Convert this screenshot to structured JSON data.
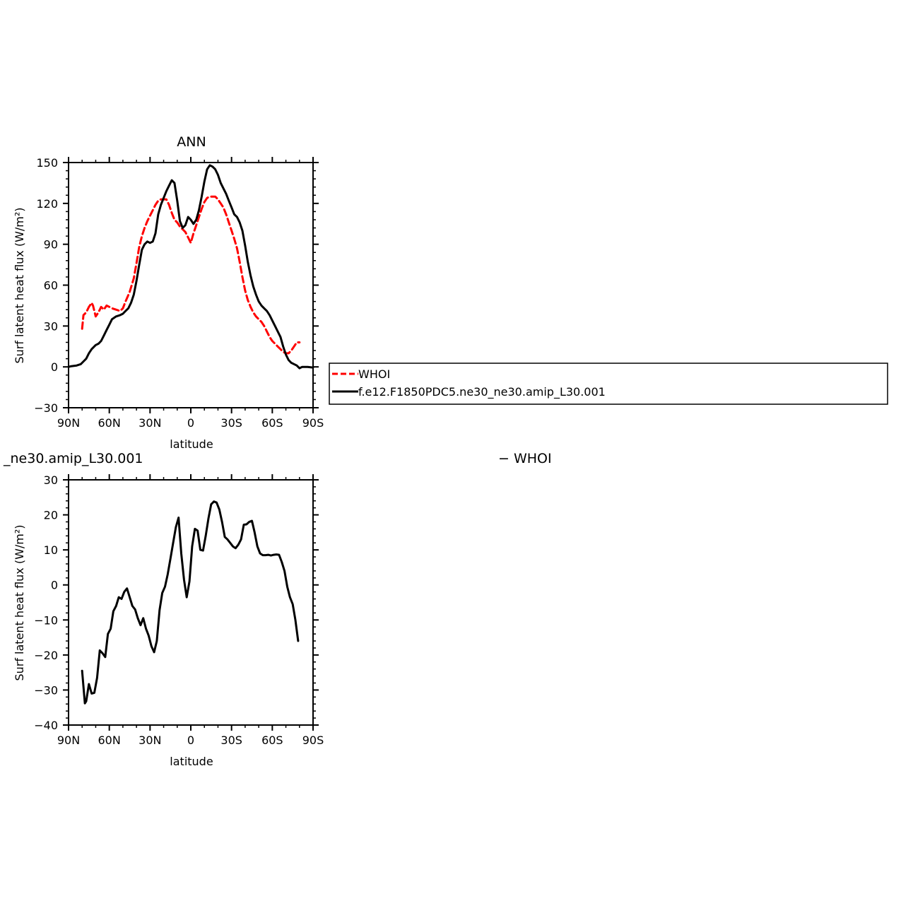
{
  "chart_data": [
    {
      "type": "line",
      "title": "ANN",
      "xlabel": "latitude",
      "ylabel": "Surf latent heat flux (W/m²)",
      "xlim": [
        90,
        -90
      ],
      "ylim": [
        -30,
        150
      ],
      "xticks": [
        90,
        60,
        30,
        0,
        -30,
        -60,
        -90
      ],
      "xtick_labels": [
        "90N",
        "60N",
        "30N",
        "0",
        "30S",
        "60S",
        "90S"
      ],
      "yticks": [
        -30,
        0,
        30,
        60,
        90,
        120,
        150
      ],
      "ytick_labels": [
        "−30",
        "0",
        "30",
        "60",
        "90",
        "120",
        "150"
      ],
      "legend": {
        "position": "right",
        "entries": [
          "WHOI",
          "f.e12.F1850PDC5.ne30_ne30.amip_L30.001"
        ]
      },
      "series": [
        {
          "name": "WHOI",
          "color": "#ff0000",
          "style": "dashed",
          "x": [
            80,
            79,
            77,
            75,
            73,
            72,
            70,
            68,
            66,
            64,
            62,
            60,
            58,
            55,
            52,
            50,
            48,
            45,
            42,
            40,
            38,
            36,
            34,
            32,
            30,
            28,
            26,
            24,
            22,
            20,
            18,
            16,
            14,
            12,
            10,
            8,
            6,
            4,
            2,
            0,
            -2,
            -4,
            -6,
            -8,
            -10,
            -12,
            -14,
            -16,
            -18,
            -20,
            -22,
            -24,
            -26,
            -28,
            -30,
            -32,
            -34,
            -36,
            -38,
            -40,
            -42,
            -44,
            -46,
            -48,
            -50,
            -52,
            -54,
            -56,
            -58,
            -60,
            -62,
            -64,
            -66,
            -68,
            -70,
            -72,
            -74,
            -76,
            -78,
            -80
          ],
          "y": [
            28,
            38,
            40,
            44,
            47,
            45,
            37,
            40,
            44,
            42,
            45,
            44,
            43,
            42,
            41,
            43,
            48,
            55,
            65,
            76,
            88,
            96,
            102,
            107,
            111,
            115,
            119,
            122,
            123,
            123,
            123,
            119,
            113,
            108,
            106,
            103,
            101,
            99,
            95,
            91,
            98,
            104,
            110,
            116,
            121,
            124,
            125,
            125,
            125,
            123,
            120,
            117,
            112,
            106,
            100,
            94,
            87,
            77,
            66,
            56,
            49,
            44,
            40,
            37,
            35,
            33,
            30,
            26,
            22,
            19,
            17,
            15,
            13,
            11,
            10,
            10,
            12,
            15,
            18,
            18
          ]
        },
        {
          "name": "f.e12.F1850PDC5.ne30_ne30.amip_L30.001",
          "color": "#000000",
          "style": "solid",
          "x": [
            90,
            88,
            84,
            81,
            79,
            77,
            75,
            73,
            70,
            68,
            66,
            64,
            62,
            60,
            58,
            55,
            52,
            50,
            48,
            46,
            44,
            42,
            40,
            38,
            36,
            34,
            32,
            30,
            28,
            26,
            24,
            22,
            20,
            18,
            16,
            14,
            12,
            10,
            8,
            6,
            4,
            2,
            0,
            -2,
            -4,
            -6,
            -8,
            -10,
            -12,
            -14,
            -16,
            -18,
            -20,
            -22,
            -24,
            -26,
            -28,
            -30,
            -32,
            -34,
            -36,
            -38,
            -40,
            -42,
            -44,
            -46,
            -48,
            -50,
            -52,
            -54,
            -56,
            -58,
            -60,
            -62,
            -64,
            -66,
            -68,
            -70,
            -72,
            -74,
            -76,
            -78,
            -80,
            -82,
            -86,
            -90
          ],
          "y": [
            0,
            0.5,
            1,
            2,
            4,
            6,
            10,
            13,
            16,
            17,
            19,
            23,
            27,
            31,
            35,
            37,
            38,
            39,
            41,
            43,
            47,
            53,
            63,
            75,
            86,
            90,
            92,
            91,
            92,
            98,
            112,
            119,
            124,
            129,
            133,
            137,
            135,
            122,
            107,
            102,
            104,
            110,
            108,
            105,
            108,
            115,
            125,
            136,
            145,
            148,
            147,
            145,
            141,
            135,
            131,
            127,
            122,
            117,
            112,
            110,
            106,
            100,
            89,
            77,
            67,
            59,
            53,
            48,
            45,
            43,
            41,
            38,
            34,
            30,
            26,
            22,
            15,
            9,
            5,
            3,
            2,
            1,
            -1,
            0,
            0,
            -0.5
          ]
        }
      ]
    },
    {
      "type": "line",
      "title": "_ne30.amip_L30.001",
      "title_right": "− WHOI",
      "xlabel": "latitude",
      "ylabel": "Surf latent heat flux (W/m²)",
      "xlim": [
        90,
        -90
      ],
      "ylim": [
        -40,
        30
      ],
      "xticks": [
        90,
        60,
        30,
        0,
        -30,
        -60,
        -90
      ],
      "xtick_labels": [
        "90N",
        "60N",
        "30N",
        "0",
        "30S",
        "60S",
        "90S"
      ],
      "yticks": [
        -40,
        -30,
        -20,
        -10,
        0,
        10,
        20,
        30
      ],
      "ytick_labels": [
        "−40",
        "−30",
        "−20",
        "−10",
        "0",
        "10",
        "20",
        "30"
      ],
      "series": [
        {
          "color": "#000000",
          "style": "solid",
          "x": [
            80,
            78,
            77,
            75,
            73,
            71,
            69,
            67,
            65,
            63,
            61,
            59,
            57,
            55,
            53,
            51,
            49,
            47,
            45,
            43,
            41,
            39,
            37,
            35,
            33,
            31,
            29,
            27,
            25,
            23,
            21,
            19,
            17,
            15,
            13,
            11,
            9,
            7,
            5,
            3,
            1,
            -1,
            -3,
            -5,
            -7,
            -9,
            -11,
            -13,
            -15,
            -17,
            -19,
            -21,
            -23,
            -25,
            -27,
            -29,
            -31,
            -33,
            -35,
            -37,
            -39,
            -41,
            -43,
            -45,
            -47,
            -49,
            -51,
            -53,
            -55,
            -57,
            -59,
            -61,
            -63,
            -65,
            -67,
            -69,
            -71,
            -73,
            -75,
            -77,
            -79
          ],
          "y": [
            -24.5,
            -33.8,
            -33.2,
            -28.3,
            -31,
            -30.8,
            -26.5,
            -18.7,
            -19.5,
            -20.6,
            -14,
            -12.5,
            -7.5,
            -6,
            -3.5,
            -4,
            -2,
            -1,
            -3.5,
            -6,
            -7,
            -9.5,
            -11.5,
            -9.5,
            -12.5,
            -14.5,
            -17.5,
            -19.2,
            -16,
            -7.2,
            -2.3,
            -0.5,
            3,
            7.5,
            12,
            16.5,
            19.2,
            9,
            1.5,
            -3.5,
            1,
            11,
            16,
            15.5,
            10,
            9.8,
            14,
            19,
            23,
            23.8,
            23.5,
            21.5,
            18,
            13.7,
            13,
            12,
            11,
            10.5,
            11.5,
            13,
            17.2,
            17.3,
            18,
            18.3,
            15,
            11,
            9,
            8.5,
            8.5,
            8.6,
            8.4,
            8.6,
            8.7,
            8.6,
            6.5,
            4,
            -0.5,
            -3.5,
            -5.5,
            -10,
            -16
          ]
        }
      ]
    }
  ]
}
